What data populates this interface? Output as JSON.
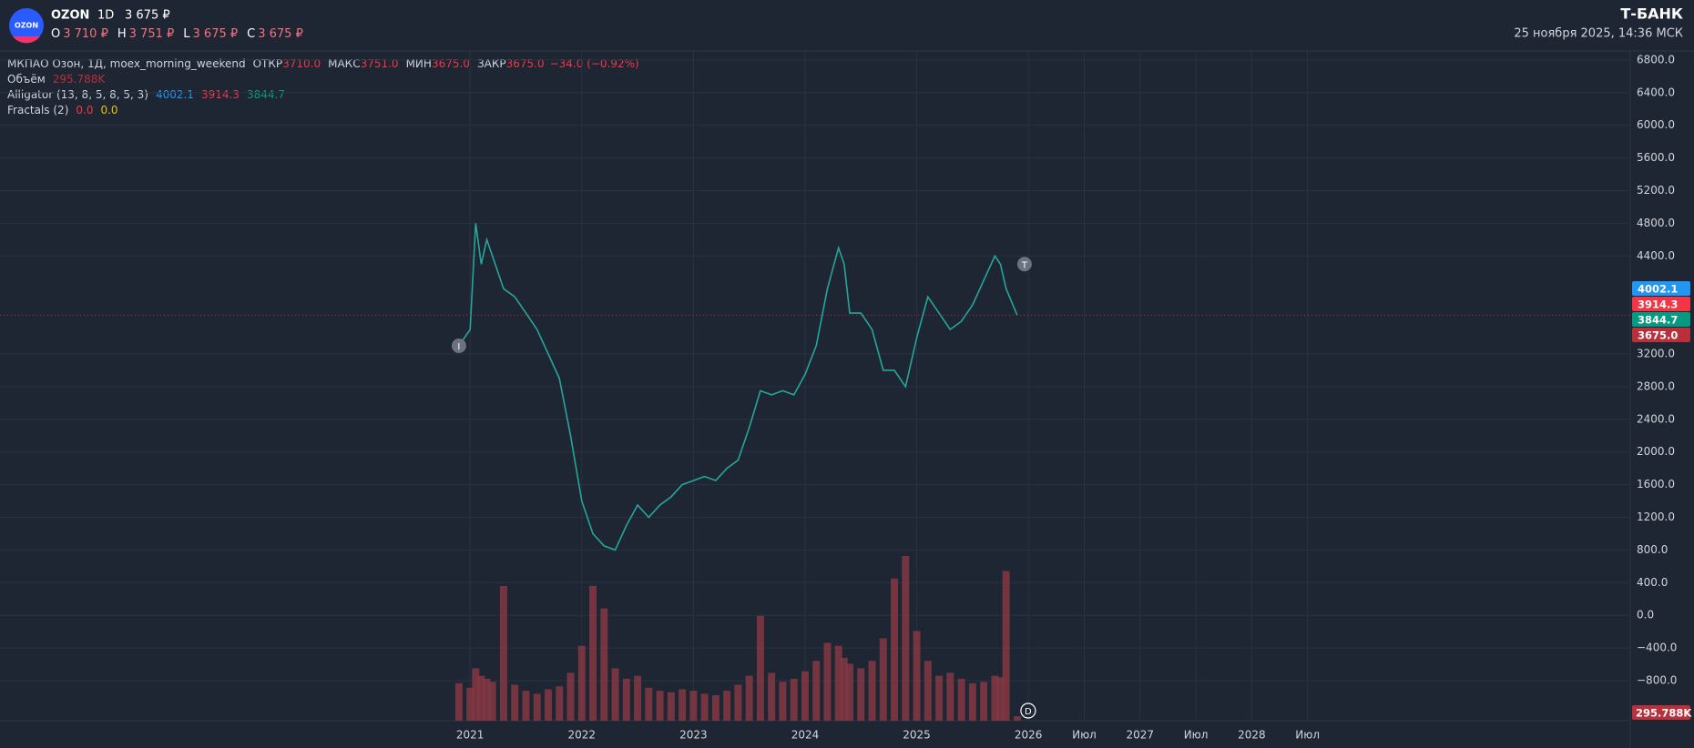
{
  "header": {
    "ticker": "OZON",
    "interval": "1D",
    "price": "3 675 ₽",
    "ohlc": [
      {
        "label": "O",
        "value": "3 710 ₽"
      },
      {
        "label": "H",
        "value": "3 751 ₽"
      },
      {
        "label": "L",
        "value": "3 675 ₽"
      },
      {
        "label": "C",
        "value": "3 675 ₽"
      }
    ],
    "brand": "Т-БАНК",
    "datetime": "25 ноября 2025, 14:36 МСК"
  },
  "legend": {
    "instrument": "МКПАО Озон, 1Д, moex_morning_weekend",
    "fields": [
      {
        "label": "ОТКР",
        "value": "3710.0"
      },
      {
        "label": "МАКС",
        "value": "3751.0"
      },
      {
        "label": "МИН",
        "value": "3675.0"
      },
      {
        "label": "ЗАКР",
        "value": "3675.0"
      }
    ],
    "change": "−34.0 (−0.92%)",
    "volume_label": "Объём",
    "alligator": "Alligator (13, 8, 5, 8, 5, 3)",
    "fractals": "Fractals (2)",
    "fractal_values": [
      "0.0",
      "0.0"
    ]
  },
  "markers": [
    "I",
    "T",
    "D"
  ],
  "chart_data": {
    "type": "line",
    "color": "#26a69a",
    "x": [
      2020.9,
      2021.0,
      2021.05,
      2021.1,
      2021.15,
      2021.2,
      2021.3,
      2021.4,
      2021.5,
      2021.6,
      2021.7,
      2021.8,
      2021.9,
      2022.0,
      2022.1,
      2022.2,
      2022.3,
      2022.4,
      2022.5,
      2022.6,
      2022.7,
      2022.8,
      2022.9,
      2023.0,
      2023.1,
      2023.2,
      2023.3,
      2023.4,
      2023.5,
      2023.6,
      2023.7,
      2023.8,
      2023.9,
      2024.0,
      2024.1,
      2024.2,
      2024.3,
      2024.35,
      2024.4,
      2024.5,
      2024.6,
      2024.7,
      2024.8,
      2024.9,
      2025.0,
      2025.1,
      2025.2,
      2025.3,
      2025.4,
      2025.5,
      2025.6,
      2025.7,
      2025.75,
      2025.8,
      2025.9
    ],
    "values": [
      3300,
      3500,
      4800,
      4300,
      4600,
      4400,
      4000,
      3900,
      3700,
      3500,
      3200,
      2900,
      2200,
      1400,
      1000,
      850,
      800,
      1100,
      1350,
      1200,
      1350,
      1450,
      1600,
      1650,
      1700,
      1650,
      1800,
      1900,
      2300,
      2750,
      2700,
      2750,
      2700,
      2950,
      3300,
      4000,
      4500,
      4300,
      3700,
      3700,
      3500,
      3000,
      3000,
      2800,
      3400,
      3900,
      3700,
      3500,
      3600,
      3800,
      4100,
      4400,
      4300,
      4000,
      3675
    ],
    "volume": {
      "color": "#8a3a44",
      "values": [
        2500000,
        2200000,
        3500000,
        3000000,
        2800000,
        2600000,
        9000000,
        2400000,
        2000000,
        1800000,
        2100000,
        2300000,
        3200000,
        5000000,
        9000000,
        7500000,
        3500000,
        2800000,
        3000000,
        2200000,
        2000000,
        1900000,
        2100000,
        2000000,
        1800000,
        1700000,
        2000000,
        2400000,
        3000000,
        7000000,
        3200000,
        2600000,
        2800000,
        3300000,
        4000000,
        5200000,
        5000000,
        4200000,
        3800000,
        3500000,
        4000000,
        5500000,
        9500000,
        11000000,
        6000000,
        4000000,
        3000000,
        3200000,
        2800000,
        2500000,
        2600000,
        3000000,
        2900000,
        10000000,
        295788
      ],
      "last_label": "295.788K"
    },
    "ylim": [
      -1290,
      6910
    ],
    "yticks": [
      {
        "value": 6800,
        "label": "6800.0"
      },
      {
        "value": 6400,
        "label": "6400.0"
      },
      {
        "value": 6000,
        "label": "6000.0"
      },
      {
        "value": 5600,
        "label": "5600.0"
      },
      {
        "value": 5200,
        "label": "5200.0"
      },
      {
        "value": 4800,
        "label": "4800.0"
      },
      {
        "value": 4400,
        "label": "4400.0"
      },
      {
        "value": 3200,
        "label": "3200.0"
      },
      {
        "value": 2800,
        "label": "2800.0"
      },
      {
        "value": 2400,
        "label": "2400.0"
      },
      {
        "value": 2000,
        "label": "2000.0"
      },
      {
        "value": 1600,
        "label": "1600.0"
      },
      {
        "value": 1200,
        "label": "1200.0"
      },
      {
        "value": 800,
        "label": "800.0"
      },
      {
        "value": 400,
        "label": "400.0"
      },
      {
        "value": 0,
        "label": "0.0"
      },
      {
        "value": -400,
        "label": "−400.0"
      },
      {
        "value": -800,
        "label": "−800.0"
      }
    ],
    "xlim": [
      2016.79,
      2031.39
    ],
    "xticks": [
      2021,
      2022,
      2023,
      2024,
      2025,
      2026,
      {
        "value": 2026.5,
        "label": "Июл"
      },
      2027,
      {
        "value": 2027.5,
        "label": "Июл"
      },
      2028,
      {
        "value": 2028.5,
        "label": "Июл"
      }
    ],
    "grid": true,
    "tags": [
      {
        "value": 4002.1,
        "color": "#2196f3"
      },
      {
        "value": 3914.3,
        "color": "#f23645"
      },
      {
        "value": 3844.7,
        "color": "#089981"
      },
      {
        "value": 3675,
        "label": "3675.0",
        "color": "#b8303b"
      }
    ]
  }
}
